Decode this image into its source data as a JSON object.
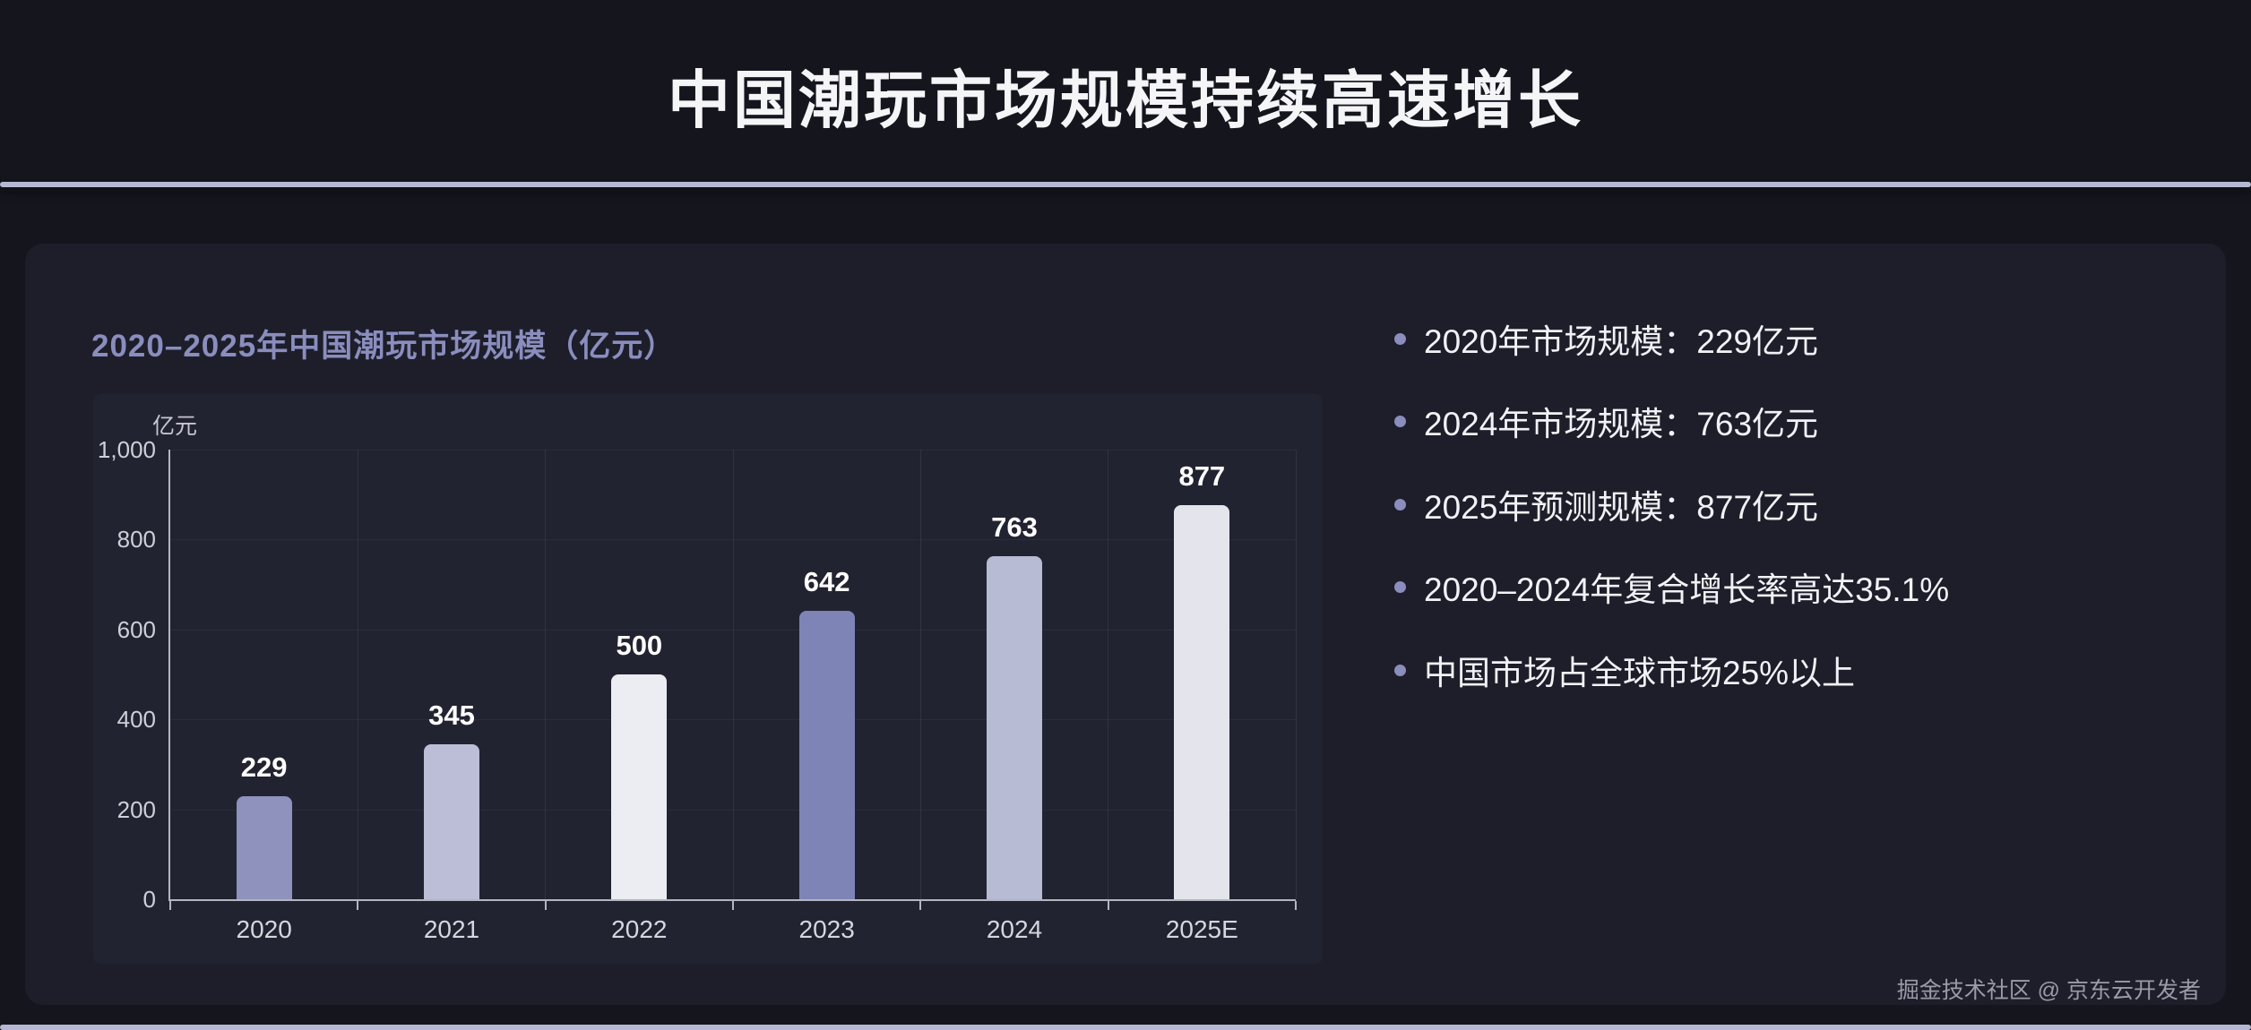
{
  "header": {
    "title": "中国潮玩市场规模持续高速增长"
  },
  "chart": {
    "title": "2020–2025年中国潮玩市场规模（亿元）",
    "unit_label": "亿元"
  },
  "chart_data": {
    "type": "bar",
    "title": "2020–2025年中国潮玩市场规模（亿元）",
    "categories": [
      "2020",
      "2021",
      "2022",
      "2023",
      "2024",
      "2025E"
    ],
    "values": [
      229,
      345,
      500,
      642,
      763,
      877
    ],
    "bar_colors": [
      "#8e92bd",
      "#bbbed6",
      "#ececf3",
      "#7f84b6",
      "#b8bbd4",
      "#e4e4ec"
    ],
    "xlabel": "",
    "ylabel": "亿元",
    "ylim": [
      0,
      1000
    ],
    "yticks": [
      0,
      200,
      400,
      600,
      800,
      1000
    ],
    "ytick_labels": [
      "0",
      "200",
      "400",
      "600",
      "800",
      "1,000"
    ],
    "grid": true,
    "legend": false,
    "value_labels": true
  },
  "bullets": [
    "2020年市场规模：229亿元",
    "2024年市场规模：763亿元",
    "2025年预测规模：877亿元",
    "2020–2024年复合增长率高达35.1%",
    "中国市场占全球市场25%以上"
  ],
  "footer": {
    "watermark": "掘金技术社区 @ 京东云开发者"
  },
  "colors": {
    "page_bg": "#14151d",
    "panel_bg": "#1d1e2a",
    "chart_panel_bg": "#222331",
    "accent_line": "#b5b7d3",
    "title_text": "#f5f5f8",
    "chart_title_text": "#8a8dbd",
    "bullet_dot": "#8a8dbd",
    "bar_value_text": "#ffffff",
    "axis_text": "#cfcfd9",
    "watermark_text": "#9a9aa8"
  }
}
